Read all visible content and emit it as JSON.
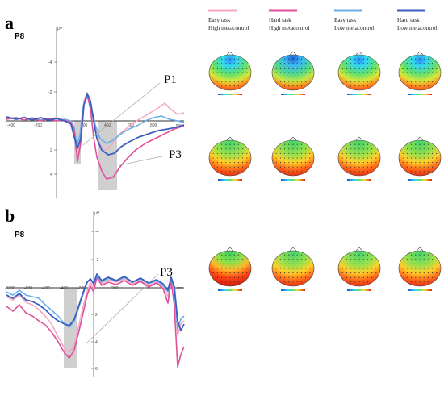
{
  "colors": {
    "easy_high": "#f4a9bf",
    "hard_high": "#e0509a",
    "easy_low": "#6aaee8",
    "hard_low": "#3a5fc0",
    "shade": "#c8c8c8"
  },
  "legend": [
    {
      "line1": "Easy task",
      "line2": "High metacontrol",
      "color_key": "easy_high"
    },
    {
      "line1": "Hard task",
      "line2": "High metacontrol",
      "color_key": "hard_high"
    },
    {
      "line1": "Easy task",
      "line2": "Low metacontrol",
      "color_key": "easy_low"
    },
    {
      "line1": "Hard task",
      "line2": "Low metacontrol",
      "color_key": "hard_low"
    }
  ],
  "panel_a": {
    "letter": "a",
    "electrode": "P8",
    "unit": "μV",
    "x_unit": "ms",
    "y_ticks": [
      "-4",
      "-2",
      "2",
      "4"
    ],
    "x_ticks": [
      "-400",
      "-200",
      "200",
      "400",
      "600",
      "800"
    ],
    "labels": [
      "P1",
      "P3"
    ]
  },
  "panel_b": {
    "letter": "b",
    "electrode": "P8",
    "unit": "μV",
    "x_unit": "ms",
    "y_ticks": [
      "-4",
      "-2",
      "2",
      "4",
      "6"
    ],
    "x_ticks": [
      "-1000",
      "-800",
      "-600",
      "-400",
      "-200",
      "200"
    ],
    "labels": [
      "P3"
    ]
  }
}
